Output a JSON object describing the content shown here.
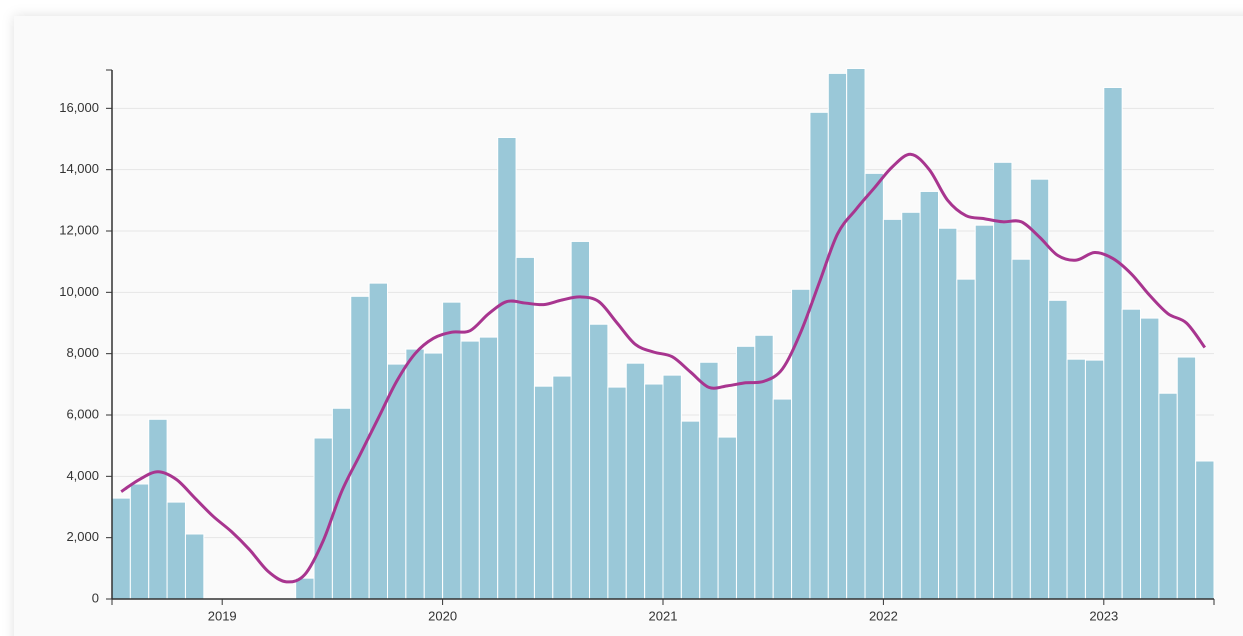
{
  "chart_data": {
    "type": "histogram",
    "bins": [
      2018.5,
      2018.5833,
      2018.6667,
      2018.75,
      2018.8333,
      2018.9167,
      2019,
      2019.0833,
      2019.1667,
      2019.25,
      2019.3333,
      2019.4167,
      2019.5,
      2019.5833,
      2019.6667,
      2019.75,
      2019.8333,
      2019.9167,
      2020,
      2020.0833,
      2020.1667,
      2020.25,
      2020.3333,
      2020.4167,
      2020.5,
      2020.5833,
      2020.6667,
      2020.75,
      2020.8333,
      2020.9167,
      2021,
      2021.0833,
      2021.1667,
      2021.25,
      2021.3333,
      2021.4167,
      2021.5,
      2021.5833,
      2021.6667,
      2021.75,
      2021.8333,
      2021.9167,
      2022,
      2022.0833,
      2022.1667,
      2022.25,
      2022.3333,
      2022.4167,
      2022.5,
      2022.5833,
      2022.6667,
      2022.75,
      2022.8333,
      2022.9167,
      2023,
      2023.0833,
      2023.1667,
      2023.25,
      2023.3333,
      2023.4167,
      2023.5
    ],
    "values": [
      3290,
      3750,
      5860,
      3160,
      2120,
      0,
      0,
      0,
      0,
      0,
      680,
      5250,
      6220,
      9870,
      10300,
      7660,
      8150,
      8020,
      9680,
      8410,
      8540,
      15050,
      11140,
      6940,
      7270,
      11660,
      8960,
      6910,
      7690,
      7010,
      7300,
      5800,
      7720,
      5280,
      8240,
      8600,
      6520,
      10100,
      15870,
      17140,
      17300,
      13880,
      12380,
      12610,
      13290,
      12090,
      10430,
      12190,
      14240,
      11080,
      13690,
      9740,
      7820,
      7790,
      16680,
      9450,
      9160,
      6710,
      7890,
      4500
    ],
    "color": "#9ac8d8",
    "line": {
      "color": "#a8358f",
      "values": [
        3500,
        3900,
        4150,
        3900,
        3300,
        2700,
        2200,
        1600,
        900,
        560,
        800,
        1900,
        3500,
        4700,
        5900,
        7100,
        8000,
        8500,
        8700,
        8750,
        9300,
        9700,
        9650,
        9600,
        9750,
        9850,
        9700,
        9000,
        8300,
        8050,
        7900,
        7400,
        6900,
        6950,
        7050,
        7100,
        7500,
        8700,
        10300,
        11900,
        12700,
        13400,
        14100,
        14500,
        14000,
        13000,
        12500,
        12400,
        12300,
        12300,
        11800,
        11200,
        11050,
        11300,
        11100,
        10600,
        9900,
        9300,
        9000,
        8200
      ]
    },
    "xlim": [
      2018.5,
      2023.5
    ],
    "xticks": [
      2019,
      2020,
      2021,
      2022,
      2023
    ],
    "ylim": [
      0,
      17250
    ],
    "yticks": [
      0,
      {
        "value": 2000,
        "label": "2,000"
      },
      {
        "value": 4000,
        "label": "4,000"
      },
      {
        "value": 6000,
        "label": "6,000"
      },
      {
        "value": 8000,
        "label": "8,000"
      },
      {
        "value": 10000,
        "label": "10,000"
      },
      {
        "value": 12000,
        "label": "12,000"
      },
      {
        "value": 14000,
        "label": "14,000"
      },
      {
        "value": 16000,
        "label": "16,000"
      }
    ],
    "grid": true
  }
}
